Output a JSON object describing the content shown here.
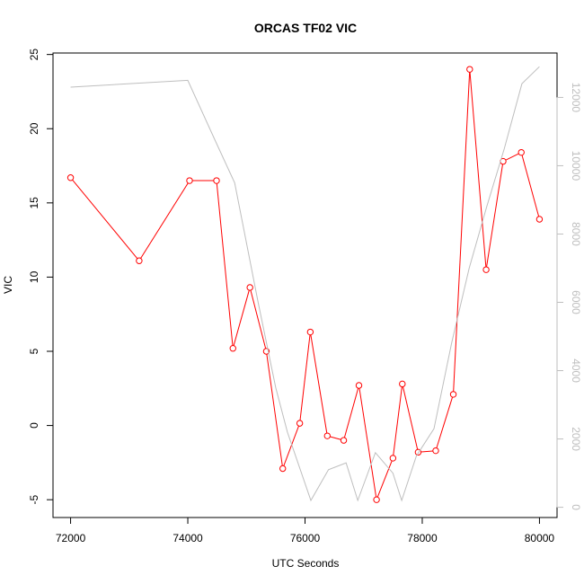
{
  "chart_data": {
    "type": "line",
    "title": "ORCAS TF02 VIC",
    "xlabel": "UTC Seconds",
    "ylabel": "VIC",
    "xlim": [
      71700,
      80300
    ],
    "ylim": [
      -6.2,
      25.1
    ],
    "y2lim": [
      -300,
      13300
    ],
    "x_ticks": [
      72000,
      74000,
      76000,
      78000,
      80000
    ],
    "y_ticks": [
      -5,
      0,
      5,
      10,
      15,
      20,
      25
    ],
    "y2_ticks": [
      0,
      2000,
      4000,
      6000,
      8000,
      10000,
      12000
    ],
    "colors": {
      "primary": "#ff0000",
      "secondary": "#bebebe",
      "axis": "#000000"
    },
    "series": [
      {
        "axis": "left",
        "style": "line-with-points",
        "x": [
          72000,
          73170,
          74030,
          74490,
          74770,
          75060,
          75340,
          75620,
          75910,
          76090,
          76380,
          76660,
          76920,
          77220,
          77500,
          77660,
          77930,
          78230,
          78530,
          78810,
          79090,
          79380,
          79690,
          80000
        ],
        "y": [
          16.7,
          11.1,
          16.5,
          16.5,
          5.2,
          9.3,
          5.0,
          -2.9,
          0.15,
          6.3,
          -0.7,
          -1.0,
          2.7,
          -5.0,
          -2.2,
          2.8,
          -1.8,
          -1.7,
          2.1,
          24.0,
          10.5,
          17.8,
          18.4,
          13.9
        ]
      },
      {
        "axis": "right",
        "style": "line",
        "x": [
          72000,
          74000,
          74450,
          74800,
          75200,
          75500,
          75700,
          76100,
          76400,
          76700,
          76900,
          77200,
          77500,
          77650,
          77900,
          78200,
          78500,
          78800,
          79100,
          79400,
          79700,
          80000
        ],
        "y": [
          12300,
          12500,
          10800,
          9500,
          6000,
          3500,
          2200,
          200,
          1100,
          1300,
          200,
          1600,
          1000,
          200,
          1500,
          2300,
          4800,
          7000,
          8800,
          10500,
          12400,
          12900
        ]
      }
    ]
  }
}
